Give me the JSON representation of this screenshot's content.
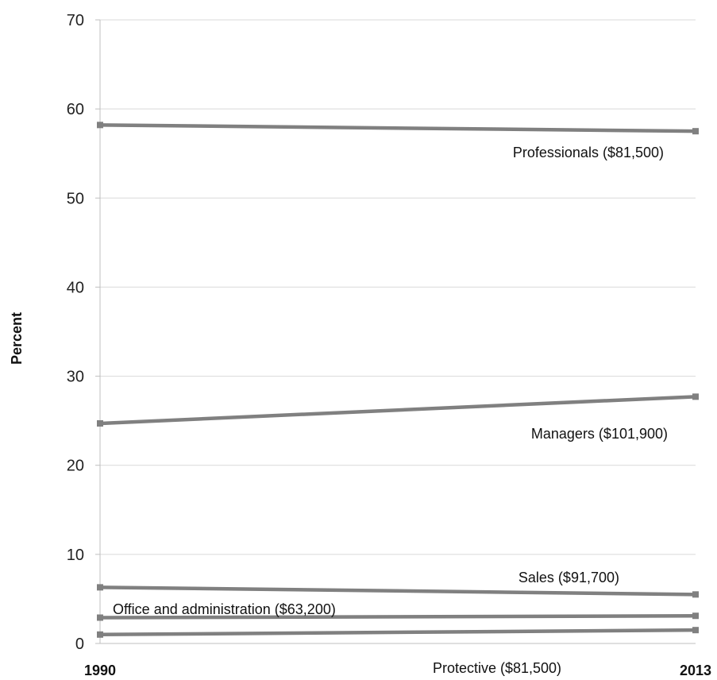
{
  "chart_data": {
    "type": "line",
    "ylabel": "Percent",
    "ylim": [
      0,
      70
    ],
    "yticks": [
      0,
      10,
      20,
      30,
      40,
      50,
      60,
      70
    ],
    "x": [
      "1990",
      "2013"
    ],
    "grid": true,
    "line_color": "#808080",
    "series": [
      {
        "name": "Professionals ($81,500)",
        "values": [
          58.2,
          57.5
        ]
      },
      {
        "name": "Managers ($101,900)",
        "values": [
          24.7,
          27.7
        ]
      },
      {
        "name": "Sales ($91,700)",
        "values": [
          6.3,
          5.5
        ]
      },
      {
        "name": "Office and administration ($63,200)",
        "values": [
          2.9,
          3.1
        ]
      },
      {
        "name": "Protective ($81,500)",
        "values": [
          1.0,
          1.5
        ]
      }
    ]
  }
}
